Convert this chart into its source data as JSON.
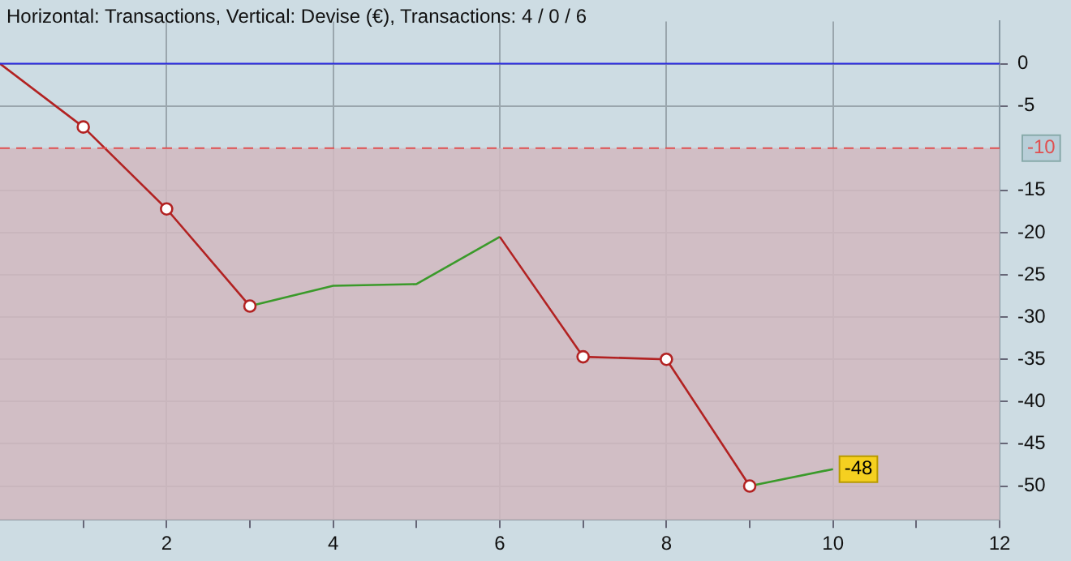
{
  "chart_data": {
    "type": "line",
    "title": "Horizontal: Transactions, Vertical: Devise (€), Transactions: 4 / 0 / 6",
    "x": [
      0,
      1,
      2,
      3,
      4,
      5,
      6,
      7,
      8,
      9,
      10
    ],
    "series": [
      {
        "color": "#b22222",
        "marker": "circle",
        "values": [
          0,
          -7.5,
          -17.2,
          -28.7,
          null,
          null,
          -20.5,
          -34.7,
          -35,
          -50,
          null
        ]
      },
      {
        "color": "#3a9a2a",
        "marker": "none",
        "values": [
          null,
          null,
          null,
          -28.7,
          -26.3,
          -26.1,
          -20.5,
          null,
          null,
          -50,
          -48
        ]
      }
    ],
    "xlim": [
      0,
      12
    ],
    "xticks": [
      {
        "value": 1,
        "label": null
      },
      2,
      {
        "value": 3,
        "label": null
      },
      4,
      {
        "value": 5,
        "label": null
      },
      6,
      {
        "value": 7,
        "label": null
      },
      8,
      {
        "value": 9,
        "label": null
      },
      10,
      {
        "value": 11,
        "label": null
      },
      12
    ],
    "ylim": [
      -54,
      5
    ],
    "yticks": [
      0,
      -5,
      -15,
      -20,
      -25,
      -30,
      -35,
      -40,
      -45,
      -50
    ],
    "ref_lines": [
      {
        "axis": "y",
        "value": 0,
        "color": "#2a2ae0",
        "line_style": "solid"
      },
      {
        "axis": "y",
        "value": -10,
        "label": "-10",
        "color": "#e05050",
        "line_style": "dashed"
      }
    ],
    "bands": [
      {
        "axis": "y",
        "from": -54,
        "to": -10,
        "color": "#d1b9c0"
      }
    ],
    "annotations": [
      {
        "text": "-48",
        "x": 10,
        "y": -48
      }
    ],
    "grid": true,
    "legend": false,
    "line_style": "solid"
  }
}
